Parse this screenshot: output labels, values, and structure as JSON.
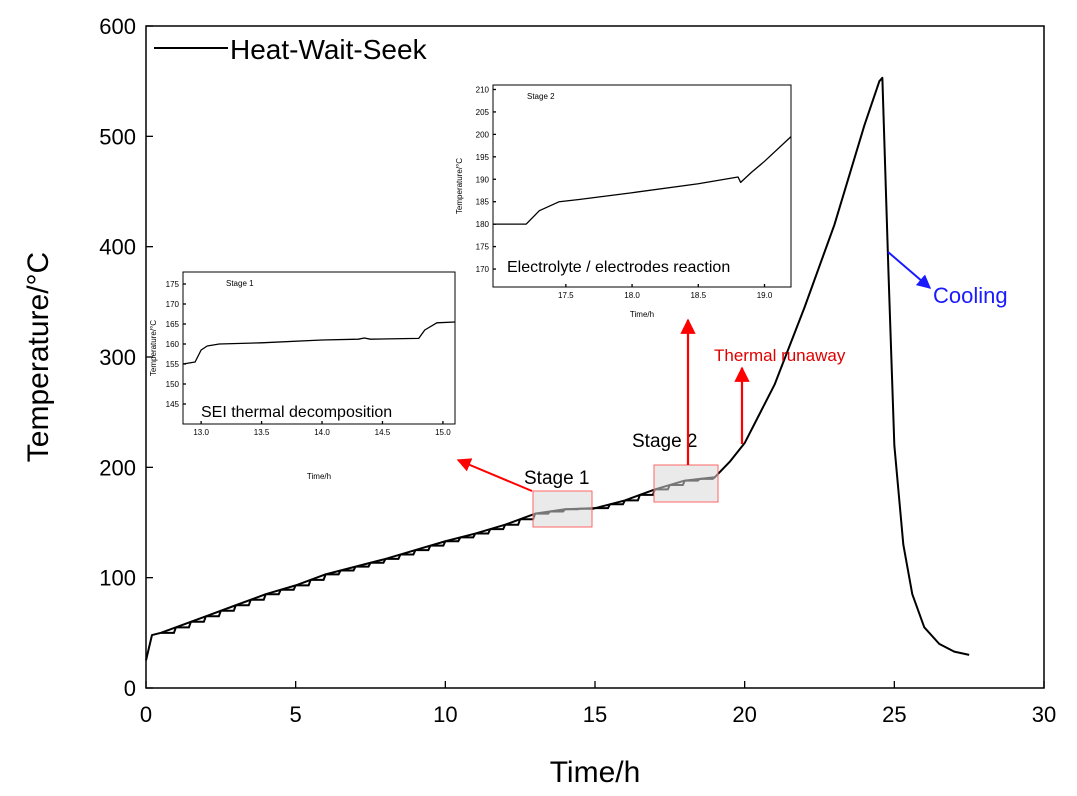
{
  "chart_data": [
    {
      "type": "line",
      "title": "",
      "xlabel": "Time/h",
      "ylabel": "Temperature/°C",
      "xlim": [
        0,
        30
      ],
      "ylim": [
        0,
        600
      ],
      "x_ticks": [
        "0",
        "5",
        "10",
        "15",
        "20",
        "25",
        "30"
      ],
      "y_ticks": [
        "0",
        "100",
        "200",
        "300",
        "400",
        "500",
        "600"
      ],
      "legend": {
        "position": "top-left",
        "entries": [
          "Heat-Wait-Seek"
        ]
      },
      "grid": false,
      "series": [
        {
          "name": "Heat-Wait-Seek",
          "color": "#000000",
          "x": [
            0,
            0.2,
            0.5,
            1,
            2,
            3,
            4,
            5,
            6,
            7,
            8,
            9,
            10,
            11,
            12,
            13,
            14,
            15,
            16,
            17,
            18,
            19,
            19.5,
            20,
            21,
            22,
            23,
            24,
            24.5,
            24.6,
            24.8,
            25,
            25.3,
            25.6,
            26,
            26.5,
            27,
            27.5
          ],
          "y": [
            25,
            48,
            50,
            55,
            65,
            75,
            85,
            93,
            103,
            110,
            117,
            125,
            133,
            140,
            148,
            158,
            162,
            163,
            170,
            180,
            188,
            191,
            205,
            222,
            275,
            345,
            420,
            510,
            550,
            553,
            380,
            220,
            130,
            85,
            55,
            40,
            33,
            30
          ]
        }
      ],
      "annotations": {
        "stage1_label": "Stage 1",
        "stage2_label": "Stage 2",
        "thermal_runaway": "Thermal runaway",
        "cooling": "Cooling",
        "highlight_color": "#ff4d4d",
        "arrow_color": "#ff0000",
        "cooling_color": "#1a1aff"
      }
    },
    {
      "type": "line",
      "title": "Stage 1",
      "caption": "SEI thermal decomposition",
      "xlabel": "Time/h",
      "ylabel": "Temperature/°C",
      "xlim": [
        12.85,
        15.1
      ],
      "ylim": [
        140,
        178
      ],
      "x_ticks": [
        "13.0",
        "13.5",
        "14.0",
        "14.5",
        "15.0"
      ],
      "y_ticks": [
        "145",
        "150",
        "155",
        "160",
        "165",
        "170",
        "175"
      ],
      "series": [
        {
          "color": "#000000",
          "x": [
            12.85,
            12.95,
            13.0,
            13.05,
            13.15,
            13.5,
            14.0,
            14.3,
            14.35,
            14.4,
            14.8,
            14.85,
            14.95,
            15.1
          ],
          "y": [
            155,
            155.5,
            158.5,
            159.5,
            160,
            160.3,
            161,
            161.2,
            161.5,
            161.2,
            161.4,
            163.5,
            165.3,
            165.5
          ]
        }
      ]
    },
    {
      "type": "line",
      "title": "Stage 2",
      "caption": "Electrolyte / electrodes reaction",
      "xlabel": "Time/h",
      "ylabel": "Temperature/°C",
      "xlim": [
        16.95,
        19.2
      ],
      "ylim": [
        166,
        211
      ],
      "x_ticks": [
        "17.5",
        "18.0",
        "18.5",
        "19.0"
      ],
      "y_ticks": [
        "170",
        "175",
        "180",
        "185",
        "190",
        "195",
        "200",
        "205",
        "210"
      ],
      "series": [
        {
          "color": "#000000",
          "x": [
            16.95,
            17.2,
            17.3,
            17.45,
            17.6,
            18.0,
            18.5,
            18.8,
            18.82,
            18.9,
            19.0,
            19.2
          ],
          "y": [
            180,
            180,
            183,
            185,
            185.5,
            187,
            189,
            190.5,
            189.3,
            191.5,
            194,
            199.5
          ]
        }
      ]
    }
  ]
}
